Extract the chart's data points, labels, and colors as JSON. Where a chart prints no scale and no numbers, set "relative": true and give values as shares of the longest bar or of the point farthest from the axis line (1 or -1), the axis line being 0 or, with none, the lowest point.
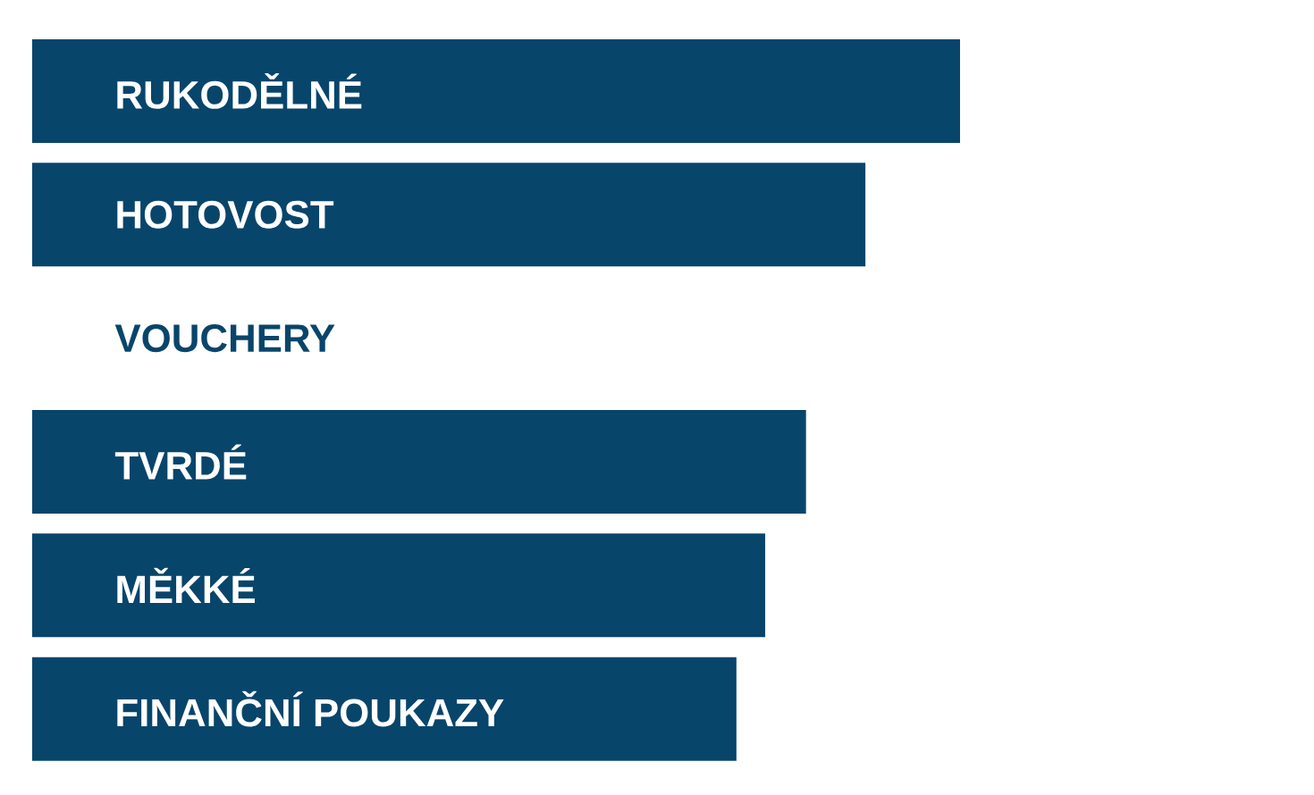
{
  "chart_data": {
    "type": "bar",
    "orientation": "horizontal",
    "relative": true,
    "categories": [
      "RUKODĚLNÉ",
      "HOTOVOST",
      "VOUCHERY",
      "TVRDÉ",
      "MĚKKÉ",
      "FINANČNÍ POUKAZY"
    ],
    "values": [
      1,
      0.898,
      null,
      0.834,
      0.79,
      0.759
    ],
    "color": "#08456b"
  }
}
